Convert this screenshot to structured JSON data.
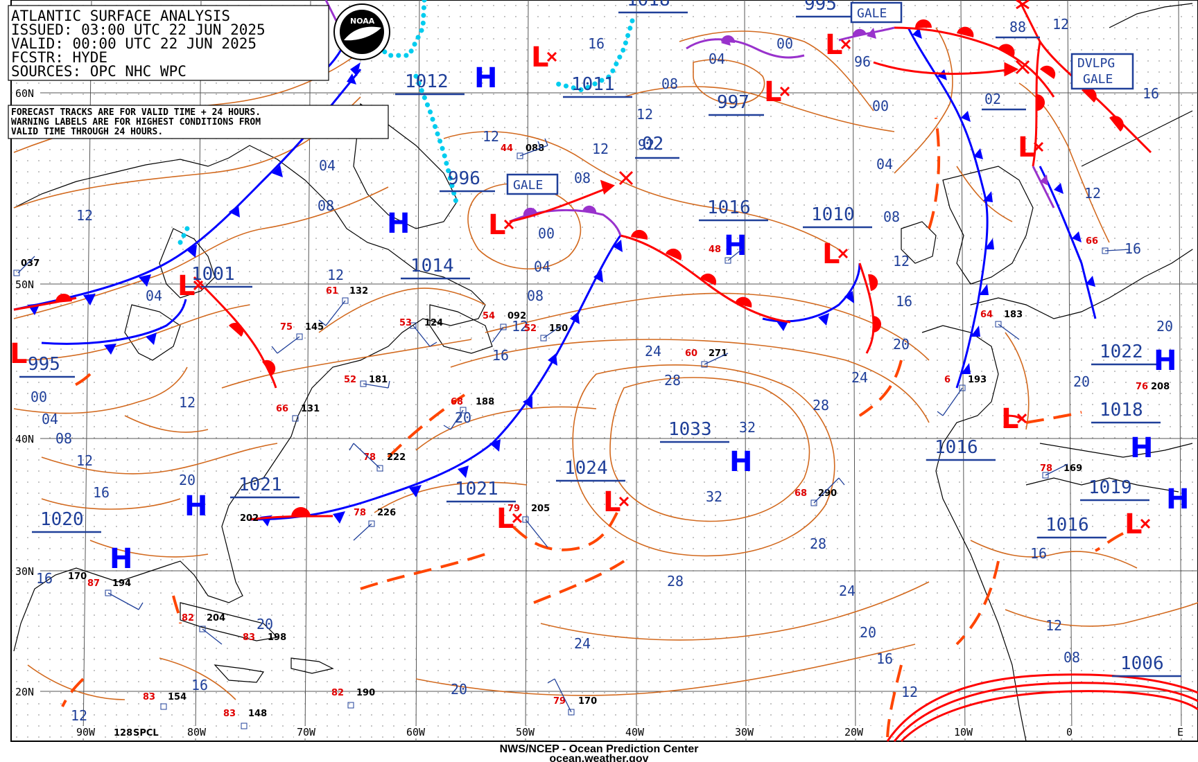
{
  "header": {
    "title": "ATLANTIC SURFACE ANALYSIS",
    "issued": "ISSUED: 03:00 UTC 22 JUN 2025",
    "valid": "VALID:  00:00 UTC 22 JUN 2025",
    "forecaster": "FCSTR:  HYDE",
    "sources": "SOURCES: OPC NHC WPC"
  },
  "notes": {
    "line1": "FORECAST TRACKS ARE FOR VALID TIME + 24 HOURS.",
    "line2": "WARNING LABELS ARE FOR HIGHEST CONDITIONS FROM",
    "line3": "VALID TIME THROUGH 24 HOURS."
  },
  "logo": {
    "text": "NOAA"
  },
  "footer": {
    "line1": "NWS/NCEP - Ocean Prediction Center",
    "line2": "ocean.weather.gov"
  },
  "colors": {
    "isobar": "#d2691e",
    "cold_front": "#0000ff",
    "warm_front": "#ff0000",
    "occluded_front": "#9932cc",
    "trough": "#ff4500",
    "ice": "#00ccee",
    "label": "#1f3f99",
    "pressure_center": "#0000ff"
  },
  "graticule": {
    "lat_labels": [
      "60N",
      "50N",
      "40N",
      "30N",
      "20N"
    ],
    "lon_labels": [
      "90W",
      "80W",
      "70W",
      "60W",
      "50W",
      "40W",
      "30W",
      "20W",
      "10W",
      "0",
      "E"
    ]
  },
  "pressure_systems": [
    {
      "type": "H",
      "value": "1012"
    },
    {
      "type": "H",
      "value": "1014"
    },
    {
      "type": "H",
      "value": "1016"
    },
    {
      "type": "H",
      "value": "1033"
    },
    {
      "type": "H",
      "value": "1021"
    },
    {
      "type": "H",
      "value": "1020"
    },
    {
      "type": "H",
      "value": "1022"
    },
    {
      "type": "H",
      "value": "1018"
    },
    {
      "type": "H",
      "value": "1019"
    },
    {
      "type": "L",
      "value": "1001"
    },
    {
      "type": "L",
      "value": "995"
    },
    {
      "type": "L",
      "value": "996"
    },
    {
      "type": "L",
      "value": "997"
    },
    {
      "type": "L",
      "value": "995"
    },
    {
      "type": "L",
      "value": "1010"
    },
    {
      "type": "L",
      "value": "1016"
    },
    {
      "type": "L",
      "value": "1024"
    },
    {
      "type": "L",
      "value": "1021"
    },
    {
      "type": "L",
      "value": "1016"
    },
    {
      "type": "L",
      "value": "1011"
    },
    {
      "type": "L",
      "value": "1018"
    },
    {
      "type": "L",
      "value": "1006"
    }
  ],
  "warnings": [
    "GALE",
    "GALE",
    "DVLPG GALE"
  ],
  "isobar_labels": [
    "04",
    "08",
    "12",
    "16",
    "20",
    "24",
    "28",
    "32",
    "00",
    "02",
    "92",
    "96",
    "88"
  ],
  "stations": [
    {
      "t": "44",
      "p": "088"
    },
    {
      "t": "61",
      "p": "132"
    },
    {
      "t": "75",
      "p": "145"
    },
    {
      "t": "53",
      "p": "124"
    },
    {
      "t": "60",
      "p": "271"
    },
    {
      "t": "48",
      "p": ""
    },
    {
      "t": "66",
      "p": "131"
    },
    {
      "t": "52",
      "p": "181"
    },
    {
      "t": "68",
      "p": "188"
    },
    {
      "t": "78",
      "p": "222"
    },
    {
      "t": "78",
      "p": "226"
    },
    {
      "t": "79",
      "p": "205"
    },
    {
      "t": "68",
      "p": "290"
    },
    {
      "t": "64",
      "p": "183"
    },
    {
      "t": "6",
      "p": "193"
    },
    {
      "t": "78",
      "p": "169"
    },
    {
      "t": "76",
      "p": "208"
    },
    {
      "t": "87",
      "p": "194"
    },
    {
      "t": "82",
      "p": "204"
    },
    {
      "t": "83",
      "p": "198"
    },
    {
      "t": "83",
      "p": "154"
    },
    {
      "t": "83",
      "p": "148"
    },
    {
      "t": "82",
      "p": "190"
    },
    {
      "t": "79",
      "p": "170"
    },
    {
      "t": "54",
      "p": "092"
    },
    {
      "t": "52",
      "p": "150"
    },
    {
      "t": "66",
      "p": "16"
    },
    {
      "t": "87",
      "p": "202"
    },
    {
      "t": "",
      "p": "037"
    },
    {
      "t": "",
      "p": "170"
    },
    {
      "t": "",
      "p": "128"
    }
  ],
  "misc": {
    "spcl": "SPCL"
  }
}
